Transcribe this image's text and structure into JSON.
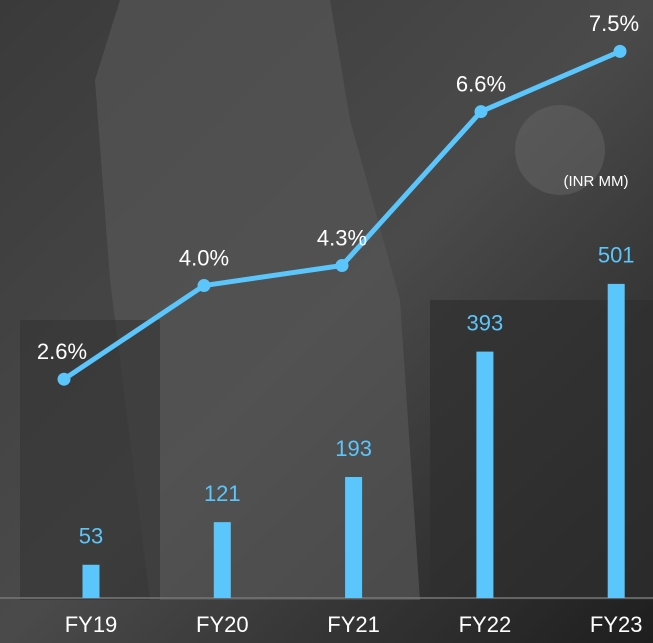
{
  "chart_data": {
    "type": "bar-line",
    "annotation": "(INR MM)",
    "categories": [
      "FY19",
      "FY20",
      "FY21",
      "FY22",
      "FY23"
    ],
    "series": [
      {
        "type": "bar",
        "color": "#5bc6fb",
        "values": [
          53,
          121,
          193,
          393,
          501
        ]
      },
      {
        "type": "line",
        "axis": "y2",
        "color": "#5bc6fb",
        "values": [
          2.6,
          4.0,
          4.3,
          6.6,
          7.5
        ],
        "value_labels": [
          "2.6%",
          "4.0%",
          "4.3%",
          "6.6%",
          "7.5%"
        ]
      }
    ],
    "ylim": [
      0,
      890
    ],
    "y2lim": [
      -0.67,
      7.67
    ]
  }
}
